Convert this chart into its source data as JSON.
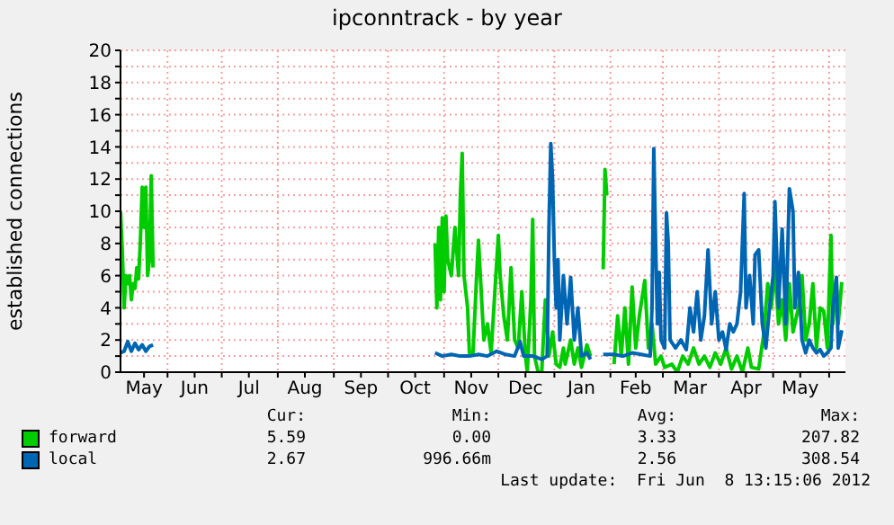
{
  "chart_data": {
    "type": "line",
    "title": "ipconntrack - by year",
    "ylabel": "established connections",
    "xlim": [
      "2011-05-06",
      "2012-06-10"
    ],
    "xticks": [
      {
        "value": "2011-05-19",
        "label": "May"
      },
      {
        "value": "2011-06-01",
        "label": null
      },
      {
        "value": "2011-06-16",
        "label": "Jun"
      },
      {
        "value": "2011-07-01",
        "label": null
      },
      {
        "value": "2011-07-16",
        "label": "Jul"
      },
      {
        "value": "2011-08-01",
        "label": null
      },
      {
        "value": "2011-08-16",
        "label": "Aug"
      },
      {
        "value": "2011-09-01",
        "label": null
      },
      {
        "value": "2011-09-16",
        "label": "Sep"
      },
      {
        "value": "2011-10-01",
        "label": null
      },
      {
        "value": "2011-10-16",
        "label": "Oct"
      },
      {
        "value": "2011-11-01",
        "label": null
      },
      {
        "value": "2011-11-16",
        "label": "Nov"
      },
      {
        "value": "2011-12-01",
        "label": null
      },
      {
        "value": "2011-12-16",
        "label": "Dec"
      },
      {
        "value": "2012-01-01",
        "label": null
      },
      {
        "value": "2012-01-16",
        "label": "Jan"
      },
      {
        "value": "2012-02-01",
        "label": null
      },
      {
        "value": "2012-02-15",
        "label": "Feb"
      },
      {
        "value": "2012-03-01",
        "label": null
      },
      {
        "value": "2012-03-16",
        "label": "Mar"
      },
      {
        "value": "2012-04-01",
        "label": null
      },
      {
        "value": "2012-04-16",
        "label": "Apr"
      },
      {
        "value": "2012-05-01",
        "label": null
      },
      {
        "value": "2012-05-16",
        "label": "May"
      },
      {
        "value": "2012-06-01",
        "label": null
      }
    ],
    "ylim": [
      0,
      20
    ],
    "yticks": [
      0,
      {
        "value": 1,
        "label": null
      },
      2,
      {
        "value": 3,
        "label": null
      },
      4,
      {
        "value": 5,
        "label": null
      },
      6,
      {
        "value": 7,
        "label": null
      },
      8,
      {
        "value": 9,
        "label": null
      },
      10,
      {
        "value": 11,
        "label": null
      },
      12,
      {
        "value": 13,
        "label": null
      },
      14,
      {
        "value": 15,
        "label": null
      },
      16,
      {
        "value": 17,
        "label": null
      },
      18,
      {
        "value": 19,
        "label": null
      },
      20
    ],
    "grid": true,
    "legend": "bottom",
    "marker": "none",
    "line_style": "solid",
    "annotations": [
      "Cur:",
      "Min:",
      "Avg:",
      "Max:",
      "5.59",
      "0.00",
      "3.33",
      "207.82",
      "2.67",
      "996.66m",
      "2.56",
      "308.54",
      "Last update:  Fri Jun  8 13:15:06 2012"
    ],
    "series": [
      {
        "name": "forward",
        "color": "#00cc00",
        "x": [
          "2011-05-06",
          "2011-05-07",
          "2011-05-08",
          "2011-05-09",
          "2011-05-10",
          "2011-05-11",
          "2011-05-12",
          "2011-05-13",
          "2011-05-14",
          "2011-05-15",
          "2011-05-16",
          "2011-05-17",
          "2011-05-18",
          "2011-05-19",
          "2011-05-20",
          "2011-05-21",
          "2011-05-22",
          "2011-05-23",
          "2011-05-24",
          "2011-07-01",
          "2011-10-27",
          "2011-10-28",
          "2011-10-29",
          "2011-10-30",
          "2011-10-31",
          "2011-11-01",
          "2011-11-02",
          "2011-11-03",
          "2011-11-05",
          "2011-11-07",
          "2011-11-09",
          "2011-11-10",
          "2011-11-11",
          "2011-11-12",
          "2011-11-14",
          "2011-11-15",
          "2011-11-17",
          "2011-11-19",
          "2011-11-20",
          "2011-11-22",
          "2011-11-23",
          "2011-11-25",
          "2011-11-27",
          "2011-12-01",
          "2011-12-02",
          "2011-12-04",
          "2011-12-06",
          "2011-12-08",
          "2011-12-10",
          "2011-12-12",
          "2011-12-14",
          "2011-12-16",
          "2011-12-17",
          "2011-12-19",
          "2011-12-20",
          "2011-12-21",
          "2011-12-23",
          "2011-12-25",
          "2011-12-27",
          "2011-12-29",
          "2011-12-31",
          "2012-01-02",
          "2012-01-04",
          "2012-01-06",
          "2012-01-07",
          "2012-01-10",
          "2012-01-12",
          "2012-01-14",
          "2012-01-16",
          "2012-01-19",
          "2012-01-21",
          "2012-01-25",
          "2012-01-28",
          "2012-01-29",
          "2012-01-30",
          "2012-02-01",
          "2012-02-03",
          "2012-02-05",
          "2012-02-07",
          "2012-02-09",
          "2012-02-11",
          "2012-02-13",
          "2012-02-15",
          "2012-02-17",
          "2012-02-20",
          "2012-02-22",
          "2012-02-24",
          "2012-02-26",
          "2012-02-29",
          "2012-03-02",
          "2012-03-06",
          "2012-03-09",
          "2012-03-12",
          "2012-03-15",
          "2012-03-18",
          "2012-03-21",
          "2012-03-24",
          "2012-03-27",
          "2012-03-30",
          "2012-04-02",
          "2012-04-05",
          "2012-04-08",
          "2012-04-11",
          "2012-04-14",
          "2012-04-17",
          "2012-04-19",
          "2012-04-23",
          "2012-04-26",
          "2012-04-28",
          "2012-04-30",
          "2012-05-02",
          "2012-05-04",
          "2012-05-06",
          "2012-05-08",
          "2012-05-10",
          "2012-05-12",
          "2012-05-15",
          "2012-05-17",
          "2012-05-19",
          "2012-05-21",
          "2012-05-23",
          "2012-05-25",
          "2012-05-27",
          "2012-05-29",
          "2012-05-31",
          "2012-06-02",
          "2012-06-03",
          "2012-06-05",
          "2012-06-06",
          "2012-06-08"
        ],
        "values": [
          10,
          7.5,
          4,
          6,
          5.5,
          6,
          4.5,
          5.5,
          5.2,
          6.5,
          5.8,
          8.2,
          11.5,
          9,
          11.5,
          6,
          7,
          12.2,
          6.5,
          null,
          8,
          4,
          9,
          4.5,
          9.6,
          5,
          9.7,
          7,
          6,
          9,
          6,
          11,
          13.6,
          6,
          4,
          1.2,
          1.2,
          6,
          8.2,
          4,
          2,
          3,
          1.2,
          8.5,
          6,
          3.5,
          2,
          6.5,
          2,
          1.5,
          5,
          1,
          0,
          4.5,
          9.5,
          1,
          0,
          0,
          4.5,
          1,
          2.5,
          0.5,
          0.3,
          1.5,
          0.5,
          2,
          0.5,
          1.5,
          0.3,
          1.7,
          1,
          null,
          6.4,
          12.6,
          11,
          null,
          0.5,
          3.5,
          1,
          4,
          0.5,
          5.3,
          1.5,
          3.5,
          5.7,
          1.5,
          3,
          0.5,
          1,
          0.3,
          0.5,
          0,
          1,
          0.5,
          1.5,
          0.5,
          1,
          0.3,
          1.2,
          0.5,
          1.5,
          0.2,
          1,
          0,
          1.5,
          0.3,
          0.2,
          2.5,
          5.5,
          4,
          6.5,
          3,
          4.5,
          2,
          5.5,
          2.5,
          4,
          6,
          2,
          3,
          5.5,
          1.5,
          4,
          3.8,
          1.5,
          8.5,
          3,
          5.8,
          3,
          5.6
        ]
      },
      {
        "name": "local",
        "color": "#0066b3",
        "x": [
          "2011-05-06",
          "2011-05-08",
          "2011-05-10",
          "2011-05-12",
          "2011-05-14",
          "2011-05-16",
          "2011-05-18",
          "2011-05-20",
          "2011-05-22",
          "2011-05-24",
          "2011-07-01",
          "2011-10-27",
          "2011-10-31",
          "2011-11-05",
          "2011-11-10",
          "2011-11-15",
          "2011-11-20",
          "2011-11-25",
          "2011-11-30",
          "2011-12-05",
          "2011-12-10",
          "2011-12-13",
          "2011-12-15",
          "2011-12-20",
          "2011-12-25",
          "2011-12-28",
          "2011-12-29",
          "2011-12-30",
          "2011-12-31",
          "2012-01-01",
          "2012-01-02",
          "2012-01-03",
          "2012-01-04",
          "2012-01-06",
          "2012-01-08",
          "2012-01-10",
          "2012-01-12",
          "2012-01-14",
          "2012-01-16",
          "2012-01-19",
          "2012-01-21",
          "2012-01-25",
          "2012-01-28",
          "2012-02-03",
          "2012-02-08",
          "2012-02-13",
          "2012-02-18",
          "2012-02-23",
          "2012-02-24",
          "2012-02-25",
          "2012-02-26",
          "2012-02-27",
          "2012-02-28",
          "2012-02-29",
          "2012-03-02",
          "2012-03-03",
          "2012-03-04",
          "2012-03-05",
          "2012-03-08",
          "2012-03-11",
          "2012-03-14",
          "2012-03-16",
          "2012-03-18",
          "2012-03-20",
          "2012-03-22",
          "2012-03-24",
          "2012-03-26",
          "2012-03-28",
          "2012-03-30",
          "2012-04-01",
          "2012-04-03",
          "2012-04-05",
          "2012-04-07",
          "2012-04-09",
          "2012-04-11",
          "2012-04-13",
          "2012-04-15",
          "2012-04-16",
          "2012-04-18",
          "2012-04-20",
          "2012-04-21",
          "2012-04-23",
          "2012-04-25",
          "2012-04-27",
          "2012-04-29",
          "2012-05-01",
          "2012-05-02",
          "2012-05-04",
          "2012-05-06",
          "2012-05-08",
          "2012-05-10",
          "2012-05-12",
          "2012-05-13",
          "2012-05-15",
          "2012-05-17",
          "2012-05-19",
          "2012-05-21",
          "2012-05-23",
          "2012-05-25",
          "2012-05-27",
          "2012-05-29",
          "2012-05-31",
          "2012-06-02",
          "2012-06-03",
          "2012-06-05",
          "2012-06-06",
          "2012-06-08"
        ],
        "values": [
          1.2,
          1.3,
          1.9,
          1.3,
          1.8,
          1.4,
          1.7,
          1.3,
          1.6,
          1.7,
          null,
          1.2,
          1.0,
          1.1,
          1.0,
          1.0,
          1.1,
          1.0,
          1.3,
          1.1,
          1.0,
          1.9,
          1.0,
          1.0,
          0.8,
          1.0,
          9,
          14.2,
          12,
          7,
          4,
          7,
          2,
          6,
          3,
          5.9,
          2,
          4,
          1,
          1.2,
          0.8,
          null,
          1.1,
          1.1,
          1.0,
          1.2,
          1.1,
          1.0,
          4,
          13.9,
          8,
          3,
          6.2,
          2,
          1.5,
          9.9,
          8,
          2,
          1.5,
          2,
          1.4,
          4,
          2.5,
          5,
          2,
          3.5,
          7.6,
          3,
          5,
          2,
          2.5,
          1.4,
          3,
          2.5,
          3,
          5,
          11.1,
          4,
          6,
          3,
          7.3,
          7.6,
          3,
          1.5,
          4,
          6,
          10.6,
          4,
          8.9,
          3,
          11.4,
          10,
          4,
          6.2,
          2,
          1.2,
          2,
          1.5,
          1.2,
          1.4,
          1,
          1.2,
          1.5,
          4,
          5.9,
          1.5,
          2.6
        ]
      }
    ]
  }
}
